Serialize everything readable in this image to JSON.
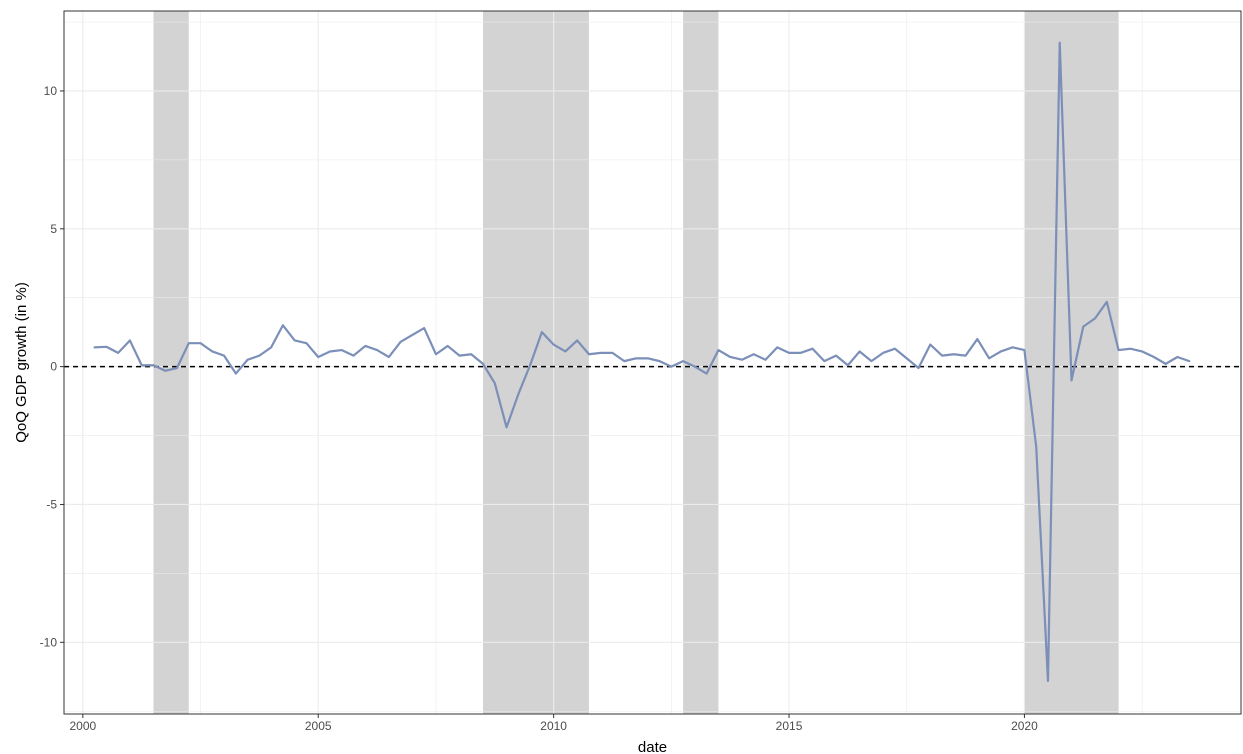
{
  "chart_data": {
    "type": "line",
    "title": "",
    "xlabel": "date",
    "ylabel": "QoQ GDP growth (in %)",
    "xlim": [
      1999.6,
      2024.6
    ],
    "ylim": [
      -12.6,
      12.9
    ],
    "x_ticks": [
      2000,
      2005,
      2010,
      2015,
      2020
    ],
    "x_tick_labels": [
      "2000",
      "2005",
      "2010",
      "2015",
      "2020"
    ],
    "y_ticks": [
      -10,
      -5,
      0,
      5,
      10
    ],
    "y_tick_labels": [
      "-10",
      "-5",
      "0",
      "5",
      "10"
    ],
    "grid": true,
    "legend": "none",
    "reference_line": {
      "y": 0,
      "style": "dashed",
      "color": "#000000"
    },
    "recession_bands": [
      {
        "start": 2001.5,
        "end": 2002.25
      },
      {
        "start": 2008.5,
        "end": 2010.75
      },
      {
        "start": 2012.75,
        "end": 2013.5
      },
      {
        "start": 2020.0,
        "end": 2022.0
      }
    ],
    "colors": {
      "line": "#7b8fb8",
      "band": "#d3d3d3",
      "grid": "#ebebeb",
      "panel_border": "#333333"
    },
    "series": [
      {
        "x": [
          2000.25,
          2000.5,
          2000.75,
          2001.0,
          2001.25,
          2001.5,
          2001.75,
          2002.0,
          2002.25,
          2002.5,
          2002.75,
          2003.0,
          2003.25,
          2003.5,
          2003.75,
          2004.0,
          2004.25,
          2004.5,
          2004.75,
          2005.0,
          2005.25,
          2005.5,
          2005.75,
          2006.0,
          2006.25,
          2006.5,
          2006.75,
          2007.0,
          2007.25,
          2007.5,
          2007.75,
          2008.0,
          2008.25,
          2008.5,
          2008.75,
          2009.0,
          2009.25,
          2009.5,
          2009.75,
          2010.0,
          2010.25,
          2010.5,
          2010.75,
          2011.0,
          2011.25,
          2011.5,
          2011.75,
          2012.0,
          2012.25,
          2012.5,
          2012.75,
          2013.0,
          2013.25,
          2013.5,
          2013.75,
          2014.0,
          2014.25,
          2014.5,
          2014.75,
          2015.0,
          2015.25,
          2015.5,
          2015.75,
          2016.0,
          2016.25,
          2016.5,
          2016.75,
          2017.0,
          2017.25,
          2017.5,
          2017.75,
          2018.0,
          2018.25,
          2018.5,
          2018.75,
          2019.0,
          2019.25,
          2019.5,
          2019.75,
          2020.0,
          2020.25,
          2020.5,
          2020.75,
          2021.0,
          2021.25,
          2021.5,
          2021.75,
          2022.0,
          2022.25,
          2022.5,
          2022.75,
          2023.0,
          2023.25,
          2023.5
        ],
        "values": [
          0.7,
          0.72,
          0.5,
          0.95,
          0.05,
          0.05,
          -0.15,
          -0.05,
          0.85,
          0.85,
          0.55,
          0.4,
          -0.25,
          0.25,
          0.4,
          0.7,
          1.5,
          0.95,
          0.85,
          0.35,
          0.55,
          0.6,
          0.4,
          0.75,
          0.6,
          0.35,
          0.9,
          1.15,
          1.4,
          0.45,
          0.75,
          0.4,
          0.45,
          0.1,
          -0.6,
          -2.2,
          -1.0,
          0.05,
          1.25,
          0.8,
          0.55,
          0.95,
          0.45,
          0.5,
          0.5,
          0.2,
          0.3,
          0.3,
          0.2,
          0.0,
          0.2,
          0.0,
          -0.25,
          0.6,
          0.35,
          0.25,
          0.45,
          0.25,
          0.7,
          0.5,
          0.5,
          0.65,
          0.2,
          0.4,
          0.05,
          0.55,
          0.2,
          0.5,
          0.65,
          0.3,
          -0.05,
          0.8,
          0.4,
          0.45,
          0.4,
          1.0,
          0.3,
          0.55,
          0.7,
          0.6,
          -2.9,
          -11.4,
          11.75,
          -0.5,
          1.45,
          1.75,
          2.35,
          0.6,
          0.65,
          0.55,
          0.35,
          0.1,
          0.35,
          0.2
        ]
      }
    ]
  }
}
